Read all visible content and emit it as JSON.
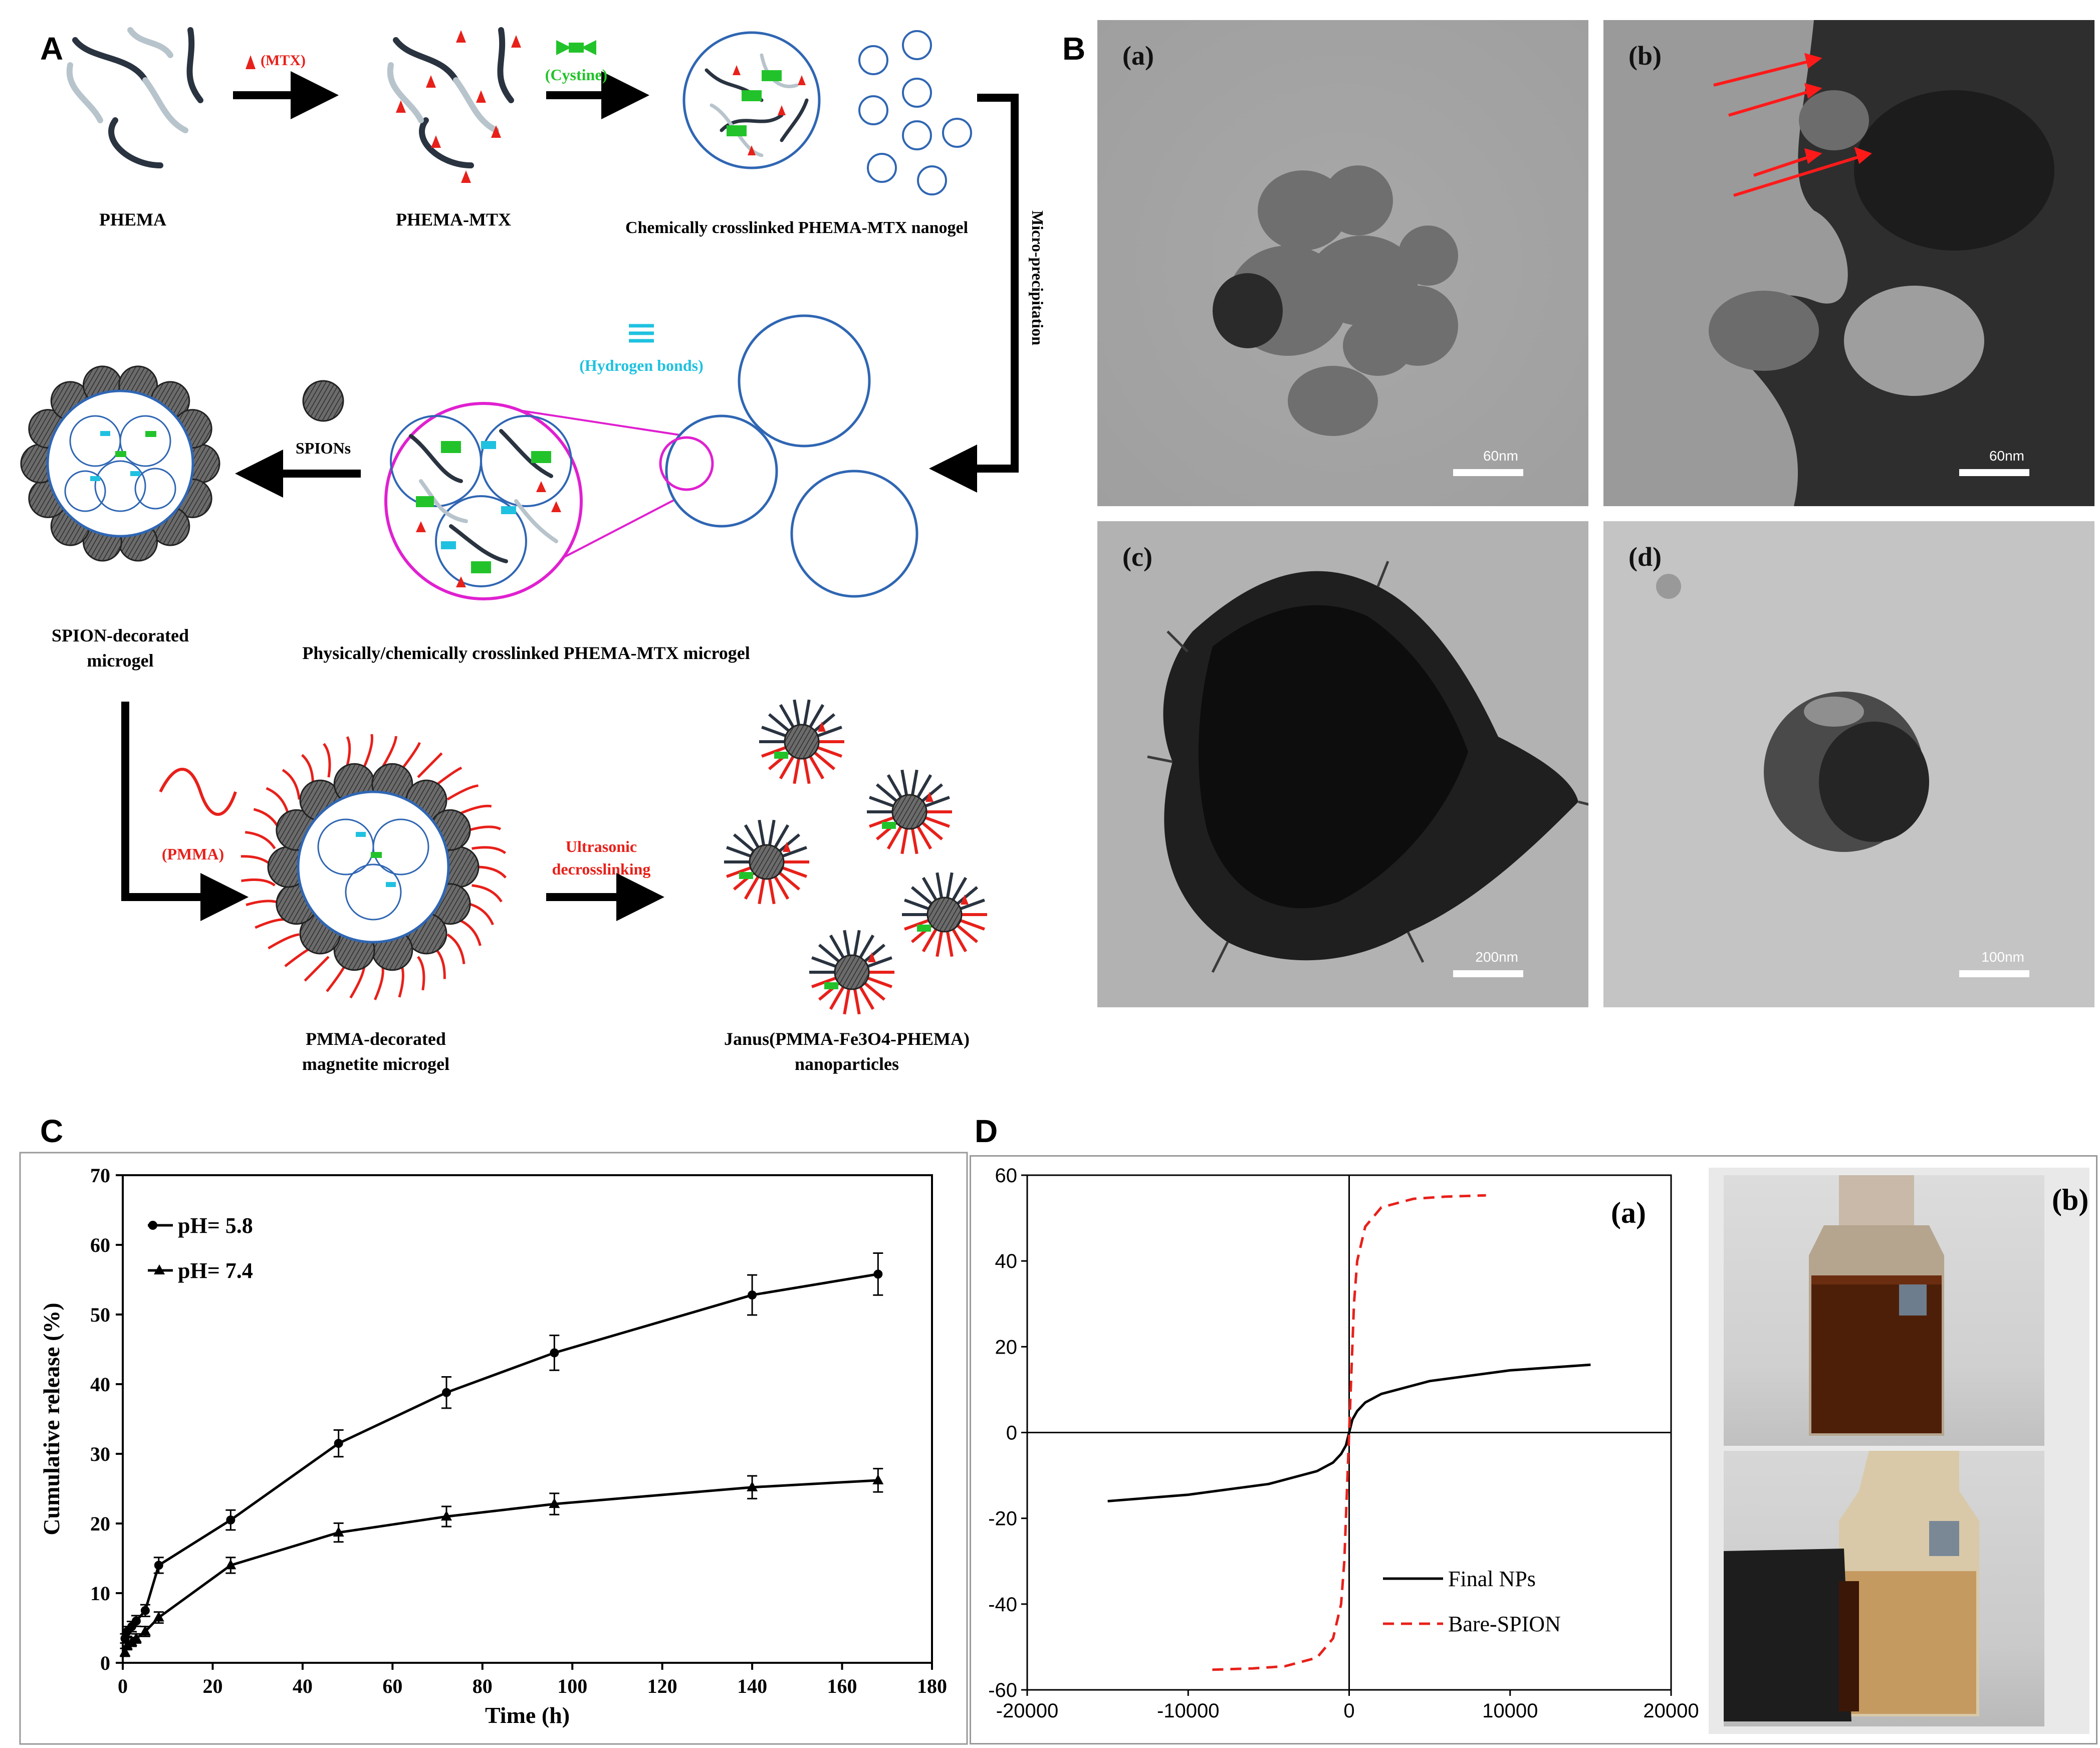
{
  "panels": {
    "A": "A",
    "B": "B",
    "C": "C",
    "D": "D"
  },
  "scheme": {
    "phema": "PHEMA",
    "mtx_reagent": "(MTX)",
    "phema_mtx": "PHEMA-MTX",
    "cystine_reagent": "(Cystine)",
    "nanogel": "Chemically crosslinked PHEMA-MTX nanogel",
    "micro_precipitation": "Micro-precipitation",
    "hydrogen_bonds": "(Hydrogen bonds)",
    "microgel": "Physically/chemically crosslinked PHEMA-MTX microgel",
    "spions": "SPIONs",
    "spion_decorated_1": "SPION-decorated",
    "spion_decorated_2": "microgel",
    "pmma_reagent": "(PMMA)",
    "ultrasonic_1": "Ultrasonic",
    "ultrasonic_2": "decrosslinking",
    "pmma_decorated_1": "PMMA-decorated",
    "pmma_decorated_2": "magnetite microgel",
    "janus_1": "Janus(PMMA-Fe3O4-PHEMA)",
    "janus_2": "nanoparticles",
    "disulfide": "S-S"
  },
  "tem": [
    {
      "label": "(a)",
      "scale": "60nm"
    },
    {
      "label": "(b)",
      "scale": "60nm"
    },
    {
      "label": "(c)",
      "scale": "200nm"
    },
    {
      "label": "(d)",
      "scale": "100nm"
    }
  ],
  "chart_data": [
    {
      "type": "line",
      "xlabel": "Time (h)",
      "ylabel": "Cumulative release (%)",
      "xlim": [
        0,
        180
      ],
      "ylim": [
        0,
        70
      ],
      "xticks": [
        0,
        20,
        40,
        60,
        80,
        100,
        120,
        140,
        160,
        180
      ],
      "yticks": [
        0,
        10,
        20,
        30,
        40,
        50,
        60,
        70
      ],
      "legend_position": "top-left",
      "series": [
        {
          "name": "pH= 5.8",
          "marker": "circle",
          "x": [
            0.5,
            1,
            2,
            3,
            5,
            8,
            24,
            48,
            72,
            96,
            140,
            168
          ],
          "y": [
            3.5,
            4.5,
            5.2,
            6,
            7.5,
            14,
            20.5,
            31.5,
            38.8,
            44.5,
            52.8,
            55.8
          ]
        },
        {
          "name": "pH= 7.4",
          "marker": "triangle",
          "x": [
            0.5,
            1,
            2,
            3,
            5,
            8,
            24,
            48,
            72,
            96,
            140,
            168
          ],
          "y": [
            1.5,
            2.5,
            3,
            3.5,
            4.5,
            6.5,
            14,
            18.7,
            21,
            22.8,
            25.2,
            26.2
          ]
        }
      ]
    },
    {
      "type": "line",
      "panel_label": "(a)",
      "xlim": [
        -20000,
        20000
      ],
      "ylim": [
        -60,
        60
      ],
      "xticks": [
        -20000,
        -10000,
        0,
        10000,
        20000
      ],
      "yticks": [
        -60,
        -40,
        -20,
        0,
        20,
        40,
        60
      ],
      "legend_position": "bottom-right",
      "series": [
        {
          "name": "Final NPs",
          "style": "solid",
          "color": "#000000",
          "x": [
            -15000,
            -10000,
            -5000,
            -2000,
            -1000,
            -500,
            -200,
            0,
            200,
            500,
            1000,
            2000,
            5000,
            10000,
            15000
          ],
          "y": [
            -16,
            -14.5,
            -12,
            -9,
            -7,
            -5,
            -3,
            0,
            3,
            5,
            7,
            9,
            12,
            14.5,
            15.8
          ]
        },
        {
          "name": "Bare-SPION",
          "style": "dashed",
          "color": "#e8201a",
          "x": [
            -8500,
            -6000,
            -4000,
            -2000,
            -1000,
            -500,
            -300,
            -150,
            0,
            150,
            300,
            500,
            1000,
            2000,
            4000,
            6000,
            8500
          ],
          "y": [
            -55.3,
            -55,
            -54.5,
            -52.5,
            -48,
            -40,
            -30,
            -15,
            0,
            15,
            30,
            40,
            48,
            52.5,
            54.5,
            55,
            55.3
          ]
        }
      ]
    }
  ],
  "photo_label": "(b)",
  "colors": {
    "accent_red": "#e8201a",
    "green": "#22c32a",
    "cyan": "#1fc1e0",
    "blue": "#2f66b3",
    "magenta": "#e020d0"
  }
}
